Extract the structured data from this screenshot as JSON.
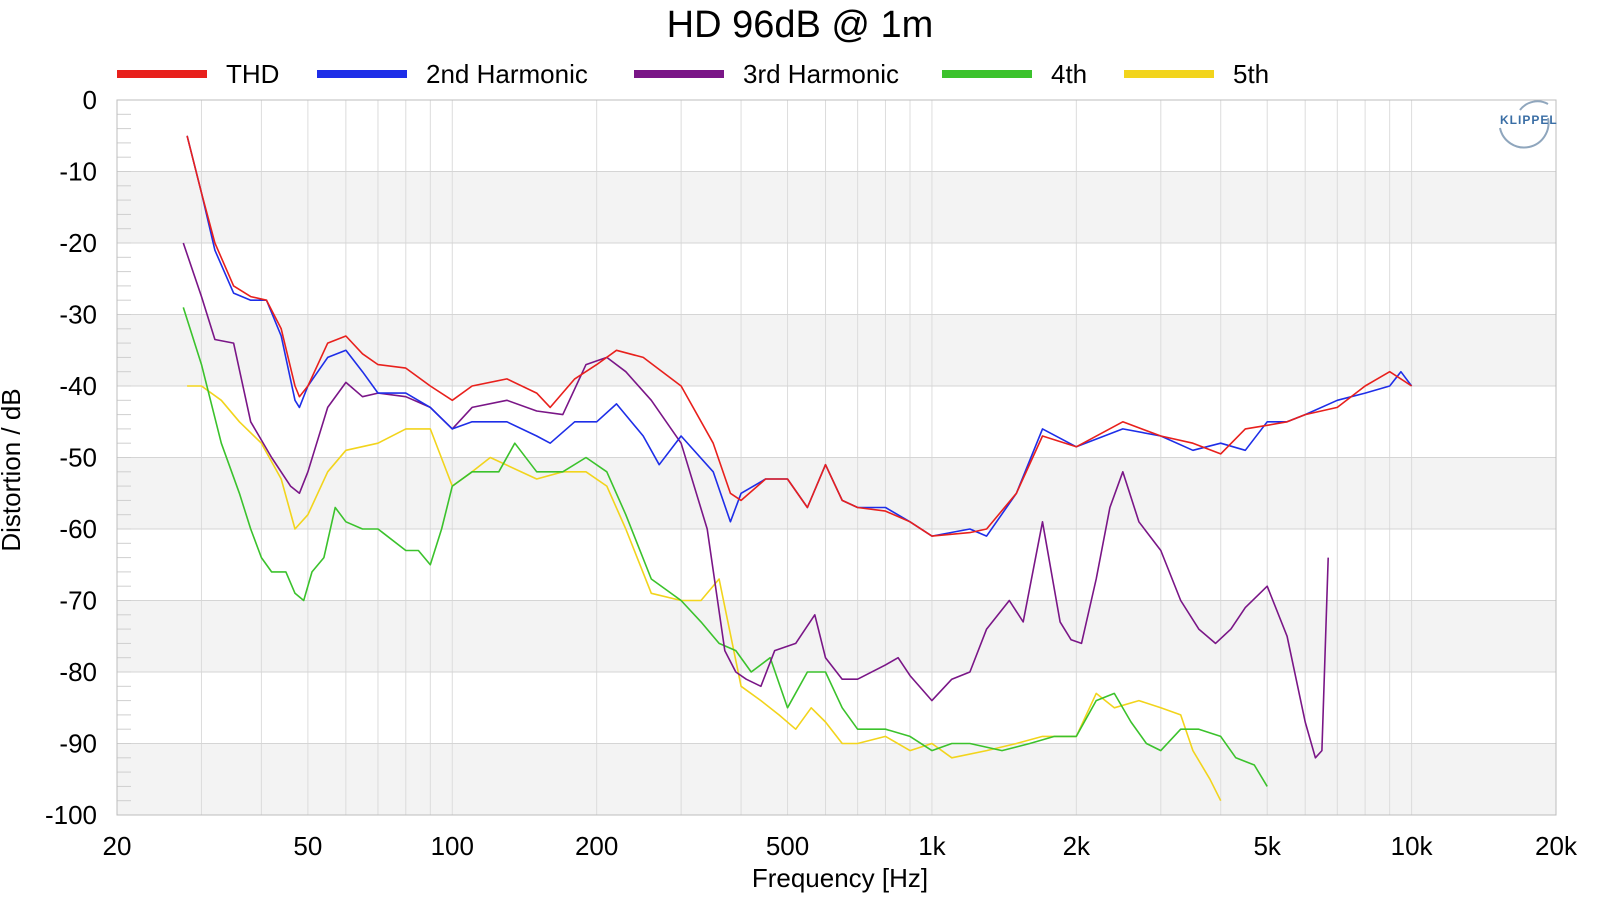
{
  "chart_data": {
    "type": "line",
    "title": "HD 96dB @ 1m",
    "xlabel": "Frequency [Hz]",
    "ylabel": "Distortion / dB",
    "xscale": "log",
    "xlim": [
      20,
      20000
    ],
    "ylim": [
      -100,
      0
    ],
    "xticks": [
      {
        "value": 20,
        "label": "20"
      },
      {
        "value": 50,
        "label": "50"
      },
      {
        "value": 100,
        "label": "100"
      },
      {
        "value": 200,
        "label": "200"
      },
      {
        "value": 500,
        "label": "500"
      },
      {
        "value": 1000,
        "label": "1k"
      },
      {
        "value": 2000,
        "label": "2k"
      },
      {
        "value": 5000,
        "label": "5k"
      },
      {
        "value": 10000,
        "label": "10k"
      },
      {
        "value": 20000,
        "label": "20k"
      }
    ],
    "yticks": [
      0,
      -10,
      -20,
      -30,
      -40,
      -50,
      -60,
      -70,
      -80,
      -90,
      -100
    ],
    "grid": true,
    "legend_position": "top",
    "series": [
      {
        "name": "THD",
        "color": "#e8201c",
        "x": [
          28,
          30,
          32,
          35,
          38,
          41,
          44,
          47,
          48,
          50,
          55,
          60,
          65,
          70,
          80,
          90,
          100,
          110,
          130,
          150,
          160,
          180,
          200,
          220,
          250,
          300,
          350,
          380,
          400,
          450,
          500,
          550,
          600,
          650,
          700,
          800,
          900,
          1000,
          1200,
          1300,
          1500,
          1700,
          2000,
          2500,
          3000,
          3500,
          4000,
          4500,
          5000,
          5500,
          6000,
          7000,
          8000,
          9000,
          9500,
          10000
        ],
        "y": [
          -5,
          -13,
          -20,
          -26,
          -27.5,
          -28,
          -32,
          -40,
          -41.5,
          -40,
          -34,
          -33,
          -35.5,
          -37,
          -37.5,
          -40,
          -42,
          -40,
          -39,
          -41,
          -43,
          -39,
          -37,
          -35,
          -36,
          -40,
          -48,
          -55,
          -56,
          -53,
          -53,
          -57,
          -51,
          -56,
          -57,
          -57.5,
          -59,
          -61,
          -60.5,
          -60,
          -55,
          -47,
          -48.5,
          -45,
          -47,
          -48,
          -49.5,
          -46,
          -45.5,
          -45,
          -44,
          -43,
          -40,
          -38,
          -39,
          -40
        ]
      },
      {
        "name": "2nd Harmonic",
        "color": "#1e2ee8",
        "x": [
          28,
          30,
          32,
          35,
          38,
          41,
          44,
          47,
          48,
          50,
          55,
          60,
          65,
          70,
          80,
          90,
          100,
          110,
          130,
          150,
          160,
          180,
          200,
          220,
          250,
          270,
          300,
          350,
          380,
          400,
          450,
          500,
          550,
          600,
          650,
          700,
          800,
          900,
          1000,
          1200,
          1300,
          1500,
          1700,
          2000,
          2500,
          3000,
          3500,
          4000,
          4500,
          5000,
          5500,
          6000,
          7000,
          8000,
          9000,
          9500,
          10000
        ],
        "y": [
          -5,
          -13,
          -21,
          -27,
          -28,
          -28,
          -33,
          -42,
          -43,
          -40,
          -36,
          -35,
          -38,
          -41,
          -41,
          -43,
          -46,
          -45,
          -45,
          -47,
          -48,
          -45,
          -45,
          -42.5,
          -47,
          -51,
          -47,
          -52,
          -59,
          -55,
          -53,
          -53,
          -57,
          -51,
          -56,
          -57,
          -57,
          -59,
          -61,
          -60,
          -61,
          -55,
          -46,
          -48.5,
          -46,
          -47,
          -49,
          -48,
          -49,
          -45,
          -45,
          -44,
          -42,
          -41,
          -40,
          -38,
          -40
        ]
      },
      {
        "name": "3rd Harmonic",
        "color": "#7a1687",
        "x": [
          27.5,
          30,
          32,
          35,
          38,
          42,
          46,
          48,
          50,
          55,
          60,
          65,
          70,
          80,
          90,
          100,
          110,
          130,
          150,
          170,
          190,
          210,
          230,
          260,
          300,
          340,
          370,
          390,
          410,
          440,
          470,
          520,
          570,
          600,
          650,
          700,
          800,
          850,
          900,
          1000,
          1100,
          1200,
          1300,
          1450,
          1550,
          1700,
          1850,
          1950,
          2050,
          2200,
          2350,
          2500,
          2700,
          3000,
          3300,
          3600,
          3900,
          4200,
          4500,
          5000,
          5500,
          6000,
          6300,
          6500,
          6700
        ],
        "y": [
          -20,
          -27.5,
          -33.5,
          -34,
          -45,
          -50,
          -54,
          -55,
          -52,
          -43,
          -39.5,
          -41.5,
          -41,
          -41.5,
          -43,
          -46,
          -43,
          -42,
          -43.5,
          -44,
          -37,
          -36,
          -38,
          -42,
          -48,
          -60,
          -77,
          -80,
          -81,
          -82,
          -77,
          -76,
          -72,
          -78,
          -81,
          -81,
          -79,
          -78,
          -80.5,
          -84,
          -81,
          -80,
          -74,
          -70,
          -73,
          -59,
          -73,
          -75.5,
          -76,
          -67,
          -57,
          -52,
          -59,
          -63,
          -70,
          -74,
          -76,
          -74,
          -71,
          -68,
          -75,
          -87,
          -92,
          -91,
          -64
        ]
      },
      {
        "name": "4th",
        "color": "#3bc22c",
        "x": [
          27.5,
          30,
          33,
          36,
          38,
          40,
          42,
          45,
          47,
          49,
          51,
          54,
          57,
          60,
          65,
          70,
          80,
          85,
          90,
          95,
          100,
          110,
          125,
          135,
          150,
          170,
          190,
          210,
          230,
          260,
          300,
          330,
          360,
          390,
          420,
          460,
          500,
          550,
          600,
          650,
          700,
          800,
          900,
          1000,
          1100,
          1200,
          1400,
          1600,
          1800,
          2000,
          2200,
          2400,
          2600,
          2800,
          3000,
          3300,
          3600,
          4000,
          4300,
          4700,
          5000
        ],
        "y": [
          -29,
          -37,
          -48,
          -55,
          -60,
          -64,
          -66,
          -66,
          -69,
          -70,
          -66,
          -64,
          -57,
          -59,
          -60,
          -60,
          -63,
          -63,
          -65,
          -60,
          -54,
          -52,
          -52,
          -48,
          -52,
          -52,
          -50,
          -52,
          -58,
          -67,
          -70,
          -73,
          -76,
          -77,
          -80,
          -78,
          -85,
          -80,
          -80,
          -85,
          -88,
          -88,
          -89,
          -91,
          -90,
          -90,
          -91,
          -90,
          -89,
          -89,
          -84,
          -83,
          -87,
          -90,
          -91,
          -88,
          -88,
          -89,
          -92,
          -93,
          -96
        ]
      },
      {
        "name": "5th",
        "color": "#f2d41c",
        "x": [
          28,
          30,
          33,
          36,
          40,
          44,
          47,
          50,
          55,
          60,
          70,
          80,
          90,
          100,
          110,
          120,
          150,
          170,
          190,
          210,
          230,
          260,
          300,
          330,
          360,
          400,
          440,
          480,
          520,
          560,
          600,
          650,
          700,
          800,
          900,
          1000,
          1100,
          1300,
          1500,
          1700,
          2000,
          2200,
          2400,
          2700,
          3000,
          3300,
          3500,
          3800,
          4000
        ],
        "y": [
          -40,
          -40,
          -42,
          -45,
          -48,
          -53,
          -60,
          -58,
          -52,
          -49,
          -48,
          -46,
          -46,
          -54,
          -52,
          -50,
          -53,
          -52,
          -52,
          -54,
          -60,
          -69,
          -70,
          -70,
          -67,
          -82,
          -84,
          -86,
          -88,
          -85,
          -87,
          -90,
          -90,
          -89,
          -91,
          -90,
          -92,
          -91,
          -90,
          -89,
          -89,
          -83,
          -85,
          -84,
          -85,
          -86,
          -91,
          -95,
          -98
        ]
      }
    ]
  }
}
